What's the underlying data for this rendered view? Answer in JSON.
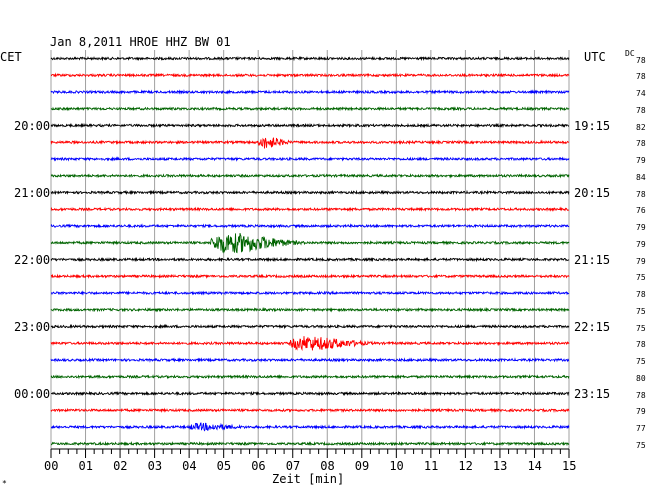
{
  "chart_data": {
    "type": "line",
    "title": "Jan 8,2011   HROE HHZ BW 01",
    "left_timezone": "CET",
    "right_timezone": "UTC",
    "dc_label": "DC",
    "xlabel": "Zeit [min]",
    "xlim": [
      0,
      15
    ],
    "x_ticks": [
      "00",
      "01",
      "02",
      "03",
      "04",
      "05",
      "06",
      "07",
      "08",
      "09",
      "10",
      "11",
      "12",
      "13",
      "14",
      "15"
    ],
    "grid": true,
    "trace_colors": [
      "#000000",
      "#ff0000",
      "#0000ff",
      "#006400"
    ],
    "hour_labels": [
      {
        "trace": 4,
        "left": "20:00",
        "right": "19:15"
      },
      {
        "trace": 8,
        "left": "21:00",
        "right": "20:15"
      },
      {
        "trace": 12,
        "left": "22:00",
        "right": "21:15"
      },
      {
        "trace": 16,
        "left": "23:00",
        "right": "22:15"
      },
      {
        "trace": 20,
        "left": "00:00",
        "right": "23:15"
      }
    ],
    "dc_values": [
      "78",
      "78",
      "74",
      "78",
      "82",
      "78",
      "79",
      "84",
      "78",
      "76",
      "79",
      "79",
      "79",
      "75",
      "78",
      "75",
      "75",
      "78",
      "75",
      "80",
      "78",
      "79",
      "77",
      "75"
    ],
    "events": [
      {
        "trace": 5,
        "start_min": 6.0,
        "end_min": 7.0,
        "amplitude": 0.45
      },
      {
        "trace": 11,
        "start_min": 4.6,
        "end_min": 7.4,
        "amplitude": 0.8
      },
      {
        "trace": 17,
        "start_min": 6.9,
        "end_min": 9.4,
        "amplitude": 0.55
      },
      {
        "trace": 22,
        "start_min": 4.0,
        "end_min": 5.7,
        "amplitude": 0.25
      }
    ],
    "footnote": "*"
  }
}
